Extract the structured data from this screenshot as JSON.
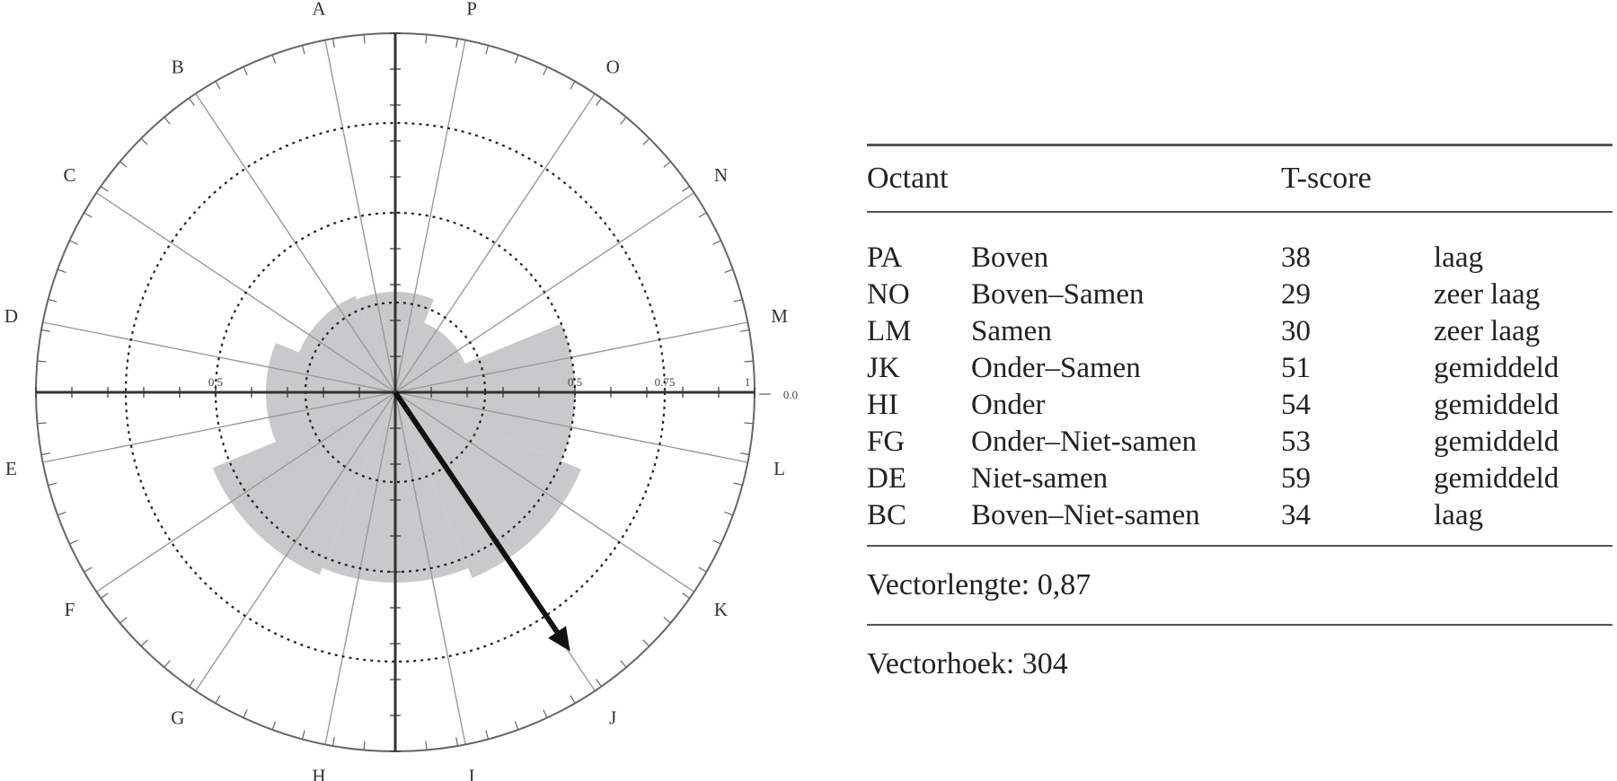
{
  "chart_data": {
    "type": "polar-area",
    "octant_labels": [
      "A",
      "B",
      "C",
      "D",
      "E",
      "F",
      "G",
      "H",
      "I",
      "J",
      "K",
      "L",
      "M",
      "N",
      "O",
      "P"
    ],
    "ring_tick_labels": [
      "0.5",
      "0.5",
      "0.75",
      "1",
      "0.0"
    ],
    "ring_values": [
      0.25,
      0.5,
      0.75
    ],
    "sectors": [
      {
        "octant": "PA",
        "value": 0.28
      },
      {
        "octant": "NO",
        "value": 0.21
      },
      {
        "octant": "LM",
        "value": 0.5
      },
      {
        "octant": "JK",
        "value": 0.56
      },
      {
        "octant": "HI",
        "value": 0.53
      },
      {
        "octant": "FG",
        "value": 0.55
      },
      {
        "octant": "DE",
        "value": 0.36
      },
      {
        "octant": "BC",
        "value": 0.29
      }
    ],
    "vector": {
      "length": 0.87,
      "angle": 304
    }
  },
  "table": {
    "headers": {
      "octant": "Octant",
      "tscore": "T-score"
    },
    "rows": [
      {
        "code": "PA",
        "name": "Boven",
        "score": "38",
        "level": "laag"
      },
      {
        "code": "NO",
        "name": "Boven–Samen",
        "score": "29",
        "level": "zeer laag"
      },
      {
        "code": "LM",
        "name": "Samen",
        "score": "30",
        "level": "zeer laag"
      },
      {
        "code": "JK",
        "name": "Onder–Samen",
        "score": "51",
        "level": "gemiddeld"
      },
      {
        "code": "HI",
        "name": "Onder",
        "score": "54",
        "level": "gemiddeld"
      },
      {
        "code": "FG",
        "name": "Onder–Niet-samen",
        "score": "53",
        "level": "gemiddeld"
      },
      {
        "code": "DE",
        "name": "Niet-samen",
        "score": "59",
        "level": "gemiddeld"
      },
      {
        "code": "BC",
        "name": "Boven–Niet-samen",
        "score": "34",
        "level": "laag"
      }
    ],
    "vectorlengte": "Vectorlengte: 0,87",
    "vectorhoek": "Vectorhoek: 304"
  }
}
